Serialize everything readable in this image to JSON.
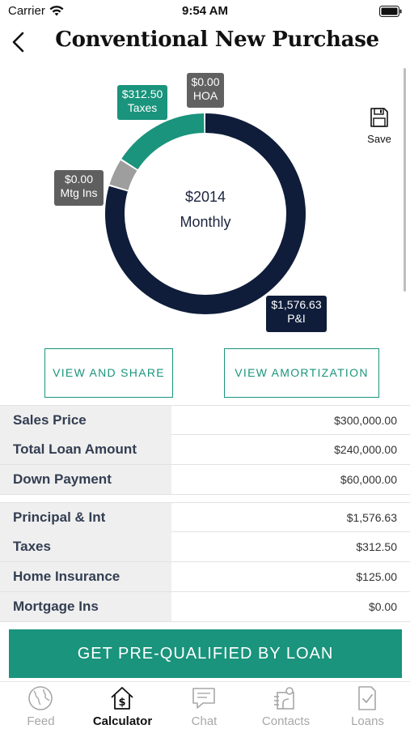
{
  "status_bar": {
    "carrier": "Carrier",
    "time": "9:54 AM"
  },
  "nav": {
    "title": "Conventional New Purchase"
  },
  "chart": {
    "center_amount": "$2014",
    "center_label": "Monthly",
    "segments": [
      {
        "name": "P&I",
        "amount": "$1,576.63",
        "label": "P&I",
        "value": 1576.63,
        "color": "#0f1d3a"
      },
      {
        "name": "Mtg Ins",
        "amount": "$0.00",
        "label": "Mtg Ins",
        "value": 0,
        "color": "#9e9e9e"
      },
      {
        "name": "Taxes",
        "amount": "$312.50",
        "label": "Taxes",
        "value": 312.5,
        "color": "#1a947c"
      },
      {
        "name": "HOA",
        "amount": "$0.00",
        "label": "HOA",
        "value": 0,
        "color": "#616161"
      }
    ]
  },
  "save": {
    "label": "Save"
  },
  "buttons": {
    "share": "VIEW AND SHARE",
    "amortization": "VIEW AMORTIZATION"
  },
  "loan_details": [
    {
      "label": "Sales Price",
      "value": "$300,000.00"
    },
    {
      "label": "Total Loan Amount",
      "value": "$240,000.00"
    },
    {
      "label": "Down Payment",
      "value": "$60,000.00"
    }
  ],
  "payment_details": [
    {
      "label": "Principal & Int",
      "value": "$1,576.63"
    },
    {
      "label": "Taxes",
      "value": "$312.50"
    },
    {
      "label": "Home Insurance",
      "value": "$125.00"
    },
    {
      "label": "Mortgage Ins",
      "value": "$0.00"
    }
  ],
  "cta": {
    "label": "GET PRE-QUALIFIED BY LOAN"
  },
  "tabs": [
    {
      "label": "Feed",
      "icon": "globe-icon",
      "active": false
    },
    {
      "label": "Calculator",
      "icon": "house-dollar-icon",
      "active": true
    },
    {
      "label": "Chat",
      "icon": "chat-icon",
      "active": false
    },
    {
      "label": "Contacts",
      "icon": "contacts-icon",
      "active": false
    },
    {
      "label": "Loans",
      "icon": "document-check-icon",
      "active": false
    }
  ],
  "colors": {
    "accent": "#1a947c",
    "navy": "#0f1d3a",
    "gray": "#616161"
  }
}
